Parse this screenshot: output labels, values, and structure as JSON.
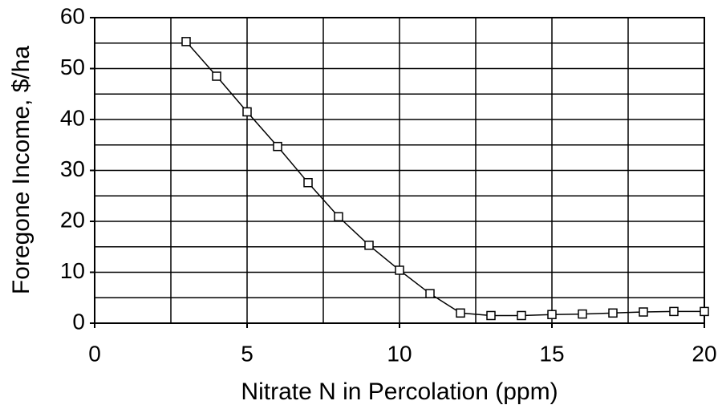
{
  "chart_data": {
    "type": "line",
    "x_label": "Nitrate N in Percolation (ppm)",
    "y_label": "Foregone Income, $/ha",
    "x": [
      3,
      4,
      5,
      6,
      7,
      8,
      9,
      10,
      11,
      12,
      13,
      14,
      15,
      16,
      17,
      18,
      19,
      20
    ],
    "series": [
      {
        "color": "#000000",
        "values": [
          55.3,
          48.5,
          41.5,
          34.7,
          27.6,
          20.9,
          15.3,
          10.4,
          5.8,
          2.0,
          1.5,
          1.5,
          1.7,
          1.8,
          2.0,
          2.2,
          2.3,
          2.3
        ]
      }
    ],
    "xlim": [
      0,
      20
    ],
    "xticks": [
      0,
      5,
      10,
      15,
      20
    ],
    "ylim": [
      0,
      60
    ],
    "yticks": [
      0,
      10,
      20,
      30,
      40,
      50,
      60
    ],
    "grid": true,
    "x_grid": [
      0,
      2.5,
      5,
      7.5,
      10,
      12.5,
      15,
      17.5,
      20
    ],
    "y_grid": [
      0,
      5,
      10,
      15,
      20,
      25,
      30,
      35,
      40,
      45,
      50,
      55,
      60
    ]
  }
}
